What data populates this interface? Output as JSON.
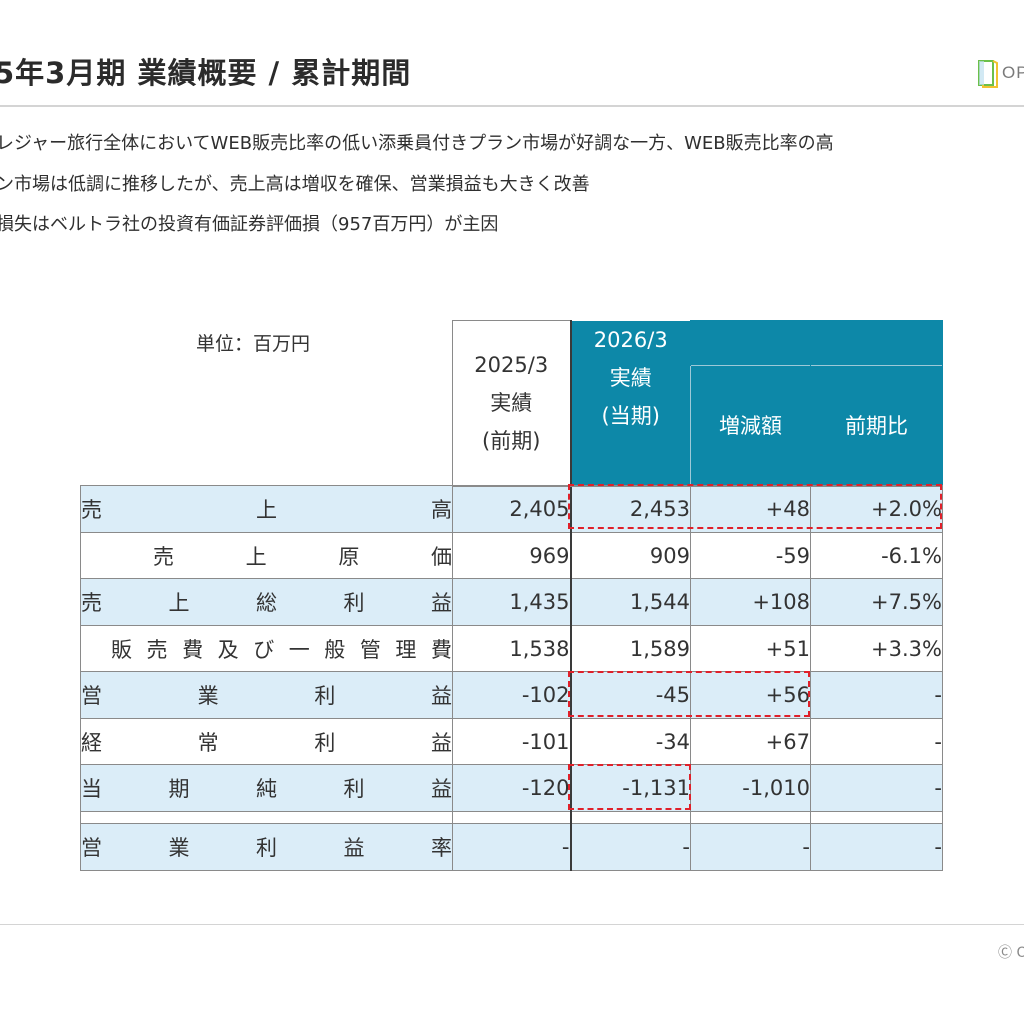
{
  "header": {
    "title": "5年3月期 業績概要 / 累計期間",
    "logo_text": "OP"
  },
  "bullets": [
    "レジャー旅行全体においてWEB販売比率の低い添乗員付きプラン市場が好調な一方、WEB販売比率の高",
    "ン市場は低調に推移したが、売上高は増収を確保、営業損益も大きく改善",
    "損失はベルトラ社の投資有価証券評価損（957百万円）が主因"
  ],
  "table": {
    "unit_label": "単位：百万円",
    "headers": {
      "prev": [
        "2025/3",
        "実績",
        "(前期)"
      ],
      "cur": [
        "2026/3",
        "実績",
        "(当期)"
      ],
      "diff": "増減額",
      "ratio": "前期比"
    },
    "rows": [
      {
        "label": "売上高",
        "chars": [
          "売",
          "上",
          "高"
        ],
        "prev": "2,405",
        "cur": "2,453",
        "diff": "+48",
        "ratio": "+2.0%"
      },
      {
        "label": "売上原価",
        "chars": [
          "売",
          "上",
          "原",
          "価"
        ],
        "prev": "969",
        "cur": "909",
        "diff": "-59",
        "ratio": "-6.1%"
      },
      {
        "label": "売上総利益",
        "chars": [
          "売",
          "上",
          "総",
          "利",
          "益"
        ],
        "prev": "1,435",
        "cur": "1,544",
        "diff": "+108",
        "ratio": "+7.5%"
      },
      {
        "label": "販売費及び一般管理費",
        "chars": [
          "販",
          "売",
          "費",
          "及",
          "び",
          "一",
          "般",
          "管",
          "理",
          "費"
        ],
        "prev": "1,538",
        "cur": "1,589",
        "diff": "+51",
        "ratio": "+3.3%"
      },
      {
        "label": "営業利益",
        "chars": [
          "営",
          "業",
          "利",
          "益"
        ],
        "prev": "-102",
        "cur": "-45",
        "diff": "+56",
        "ratio": "-"
      },
      {
        "label": "経常利益",
        "chars": [
          "経",
          "常",
          "利",
          "益"
        ],
        "prev": "-101",
        "cur": "-34",
        "diff": "+67",
        "ratio": "-"
      },
      {
        "label": "当期純利益",
        "chars": [
          "当",
          "期",
          "純",
          "利",
          "益"
        ],
        "prev": "-120",
        "cur": "-1,131",
        "diff": "-1,010",
        "ratio": "-"
      }
    ],
    "margin_row": {
      "label": "営業利益率",
      "chars": [
        "営",
        "業",
        "利",
        "益",
        "率"
      ],
      "prev": "-",
      "cur": "-",
      "diff": "-",
      "ratio": "-"
    }
  },
  "footer": {
    "copyright": "Ⓒ O"
  },
  "colors": {
    "header_blue": "#0d88a8",
    "row_blue": "#dbedf8",
    "highlight_red": "#e0202a"
  }
}
